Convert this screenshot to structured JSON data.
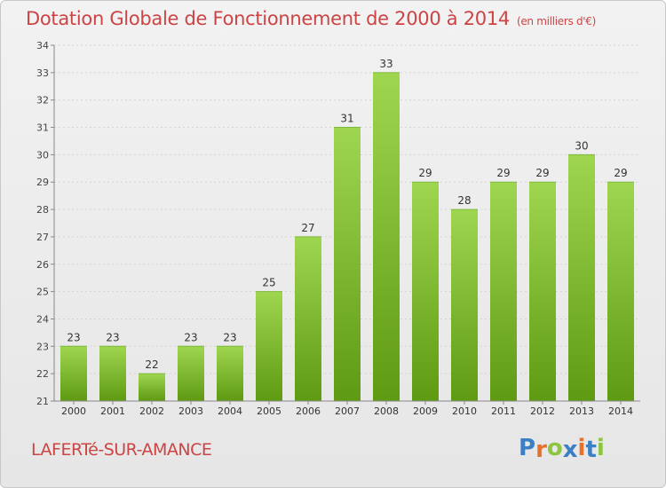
{
  "title": "Dotation Globale de Fonctionnement de 2000 à 2014",
  "unit_note": "(en milliers d'€)",
  "commune": "LAFERTé-SUR-AMANCE",
  "logo": {
    "letters": [
      "P",
      "r",
      "o",
      "x",
      "i",
      "t",
      "i"
    ],
    "colors": [
      "#3b7fc4",
      "#e8702a",
      "#8cc63f",
      "#3b7fc4",
      "#e8702a",
      "#3b7fc4",
      "#8cc63f"
    ]
  },
  "colors": {
    "bar_top": "#9fd650",
    "bar_bottom": "#5e9a12",
    "title": "#cc4444",
    "grid": "#d4d4d4",
    "axis": "#888888"
  },
  "chart_data": {
    "type": "bar",
    "categories": [
      "2000",
      "2001",
      "2002",
      "2003",
      "2004",
      "2005",
      "2006",
      "2007",
      "2008",
      "2009",
      "2010",
      "2011",
      "2012",
      "2013",
      "2014"
    ],
    "values": [
      23,
      23,
      22,
      23,
      23,
      25,
      27,
      31,
      33,
      29,
      28,
      29,
      29,
      30,
      29
    ],
    "ylim": [
      21,
      34
    ],
    "yticks": [
      21,
      22,
      23,
      24,
      25,
      26,
      27,
      28,
      29,
      30,
      31,
      32,
      33,
      34
    ],
    "grid": true,
    "data_labels": true
  }
}
